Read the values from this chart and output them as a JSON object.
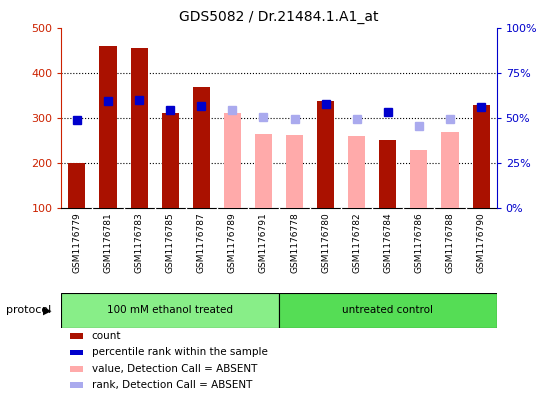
{
  "title": "GDS5082 / Dr.21484.1.A1_at",
  "samples": [
    "GSM1176779",
    "GSM1176781",
    "GSM1176783",
    "GSM1176785",
    "GSM1176787",
    "GSM1176789",
    "GSM1176791",
    "GSM1176778",
    "GSM1176780",
    "GSM1176782",
    "GSM1176784",
    "GSM1176786",
    "GSM1176788",
    "GSM1176790"
  ],
  "count_values": [
    200,
    460,
    455,
    310,
    368,
    null,
    null,
    null,
    338,
    null,
    251,
    null,
    null,
    328
  ],
  "rank_values": [
    295,
    338,
    340,
    318,
    327,
    null,
    null,
    null,
    330,
    null,
    313,
    null,
    null,
    325
  ],
  "absent_count_values": [
    null,
    null,
    null,
    null,
    null,
    310,
    265,
    263,
    null,
    260,
    null,
    228,
    268,
    null
  ],
  "absent_rank_values": [
    null,
    null,
    null,
    null,
    null,
    317,
    302,
    298,
    null,
    298,
    null,
    282,
    297,
    null
  ],
  "group1_count": 7,
  "group2_count": 7,
  "group1_label": "100 mM ethanol treated",
  "group2_label": "untreated control",
  "protocol_label": "protocol",
  "ylim_left": [
    100,
    500
  ],
  "ylim_right": [
    0,
    100
  ],
  "yticks_left": [
    100,
    200,
    300,
    400,
    500
  ],
  "yticks_right": [
    0,
    25,
    50,
    75,
    100
  ],
  "yticklabels_right": [
    "0%",
    "25%",
    "50%",
    "75%",
    "100%"
  ],
  "bar_color_present": "#aa1100",
  "bar_color_absent": "#ffaaaa",
  "rank_color_present": "#0000cc",
  "rank_color_absent": "#aaaaee",
  "group1_color": "#88ee88",
  "group2_color": "#55dd55",
  "bar_width": 0.55,
  "rank_marker_size": 6,
  "gridline_values": [
    200,
    300,
    400
  ],
  "left_spine_color": "#cc2200",
  "right_spine_color": "#0000cc"
}
